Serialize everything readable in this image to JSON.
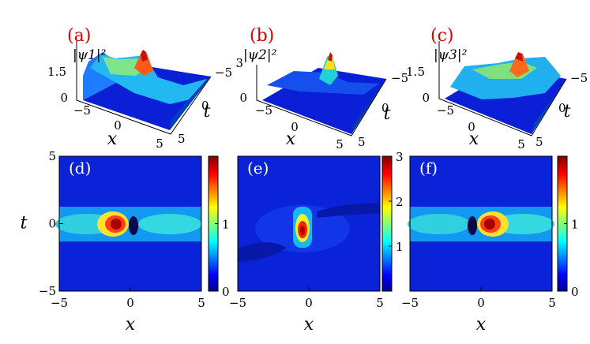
{
  "colors": {
    "colormap": [
      "#00008f",
      "#0000ff",
      "#00ffff",
      "#ffff00",
      "#ff0000",
      "#800000"
    ],
    "panel_tag": "#e00000"
  },
  "chart_data": [
    {
      "type": "surface",
      "panel": "(a)",
      "zlabel": "|ψ1|²",
      "zticks": [
        "0",
        "1.5"
      ],
      "xlabel": "x",
      "ylabel": "t",
      "xticks": [
        "−5",
        "0",
        "5"
      ],
      "yticks": [
        "−5",
        "0",
        "5"
      ],
      "xlim": [
        -5,
        5
      ],
      "ylim": [
        -5,
        5
      ],
      "zlim": [
        0,
        2.2
      ],
      "peak": {
        "x": -0.8,
        "t": 0,
        "value": 2.0
      }
    },
    {
      "type": "surface",
      "panel": "(b)",
      "zlabel": "|ψ2|²",
      "zticks": [
        "0",
        "3"
      ],
      "xlabel": "x",
      "ylabel": "t",
      "xticks": [
        "−5",
        "0",
        "5"
      ],
      "yticks": [
        "−5",
        "0",
        "5"
      ],
      "xlim": [
        -5,
        5
      ],
      "ylim": [
        -5,
        5
      ],
      "zlim": [
        0,
        3.2
      ],
      "peak": {
        "x": -0.2,
        "t": -0.2,
        "value": 3.0
      }
    },
    {
      "type": "surface",
      "panel": "(c)",
      "zlabel": "|ψ3|²",
      "zticks": [
        "0",
        "1.5"
      ],
      "xlabel": "x",
      "ylabel": "t",
      "xticks": [
        "−5",
        "0",
        "5"
      ],
      "yticks": [
        "−5",
        "0",
        "5"
      ],
      "xlim": [
        -5,
        5
      ],
      "ylim": [
        -5,
        5
      ],
      "zlim": [
        0,
        2.2
      ],
      "peak": {
        "x": 0.6,
        "t": 0,
        "value": 2.0
      }
    },
    {
      "type": "heatmap",
      "panel": "(d)",
      "xlabel": "x",
      "ylabel": "t",
      "xticks": [
        "−5",
        "0",
        "5"
      ],
      "yticks": [
        "5",
        "0",
        "−5"
      ],
      "xlim": [
        -5,
        5
      ],
      "ylim": [
        -5,
        5
      ],
      "colorbar": {
        "ticks": [
          "0",
          "1"
        ],
        "range": [
          0,
          2
        ]
      },
      "peak": {
        "x": -0.8,
        "t": 0,
        "value": 2.0
      }
    },
    {
      "type": "heatmap",
      "panel": "(e)",
      "xlabel": "x",
      "ylabel": "",
      "xticks": [
        "−5",
        "0",
        "5"
      ],
      "yticks": [],
      "xlim": [
        -5,
        5
      ],
      "ylim": [
        -5,
        5
      ],
      "colorbar": {
        "ticks": [
          "1",
          "2",
          "3"
        ],
        "range": [
          0,
          3
        ]
      },
      "peak": {
        "x": -0.2,
        "t": -0.3,
        "value": 3.0
      }
    },
    {
      "type": "heatmap",
      "panel": "(f)",
      "xlabel": "x",
      "ylabel": "",
      "xticks": [
        "−5",
        "0",
        "5"
      ],
      "yticks": [],
      "xlim": [
        -5,
        5
      ],
      "ylim": [
        -5,
        5
      ],
      "colorbar": {
        "ticks": [
          "0",
          "1"
        ],
        "range": [
          0,
          2
        ]
      },
      "peak": {
        "x": 0.6,
        "t": 0,
        "value": 2.0
      }
    }
  ]
}
